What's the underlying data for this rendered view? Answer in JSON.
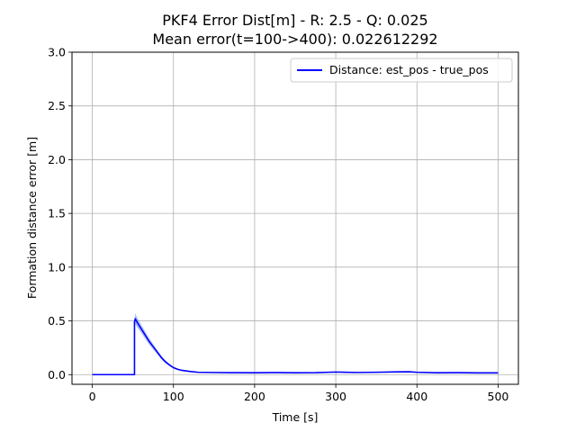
{
  "chart_data": {
    "type": "line",
    "title": "PKF4 Error Dist[m] - R: 2.5 - Q: 0.025",
    "subtitle": "Mean error(t=100->400): 0.022612292",
    "xlabel": "Time [s]",
    "ylabel": "Formation distance error [m]",
    "xlim": [
      -25,
      525
    ],
    "ylim": [
      -0.09,
      3.0
    ],
    "xticks": [
      0,
      100,
      200,
      300,
      400,
      500
    ],
    "xtick_labels": [
      "0",
      "100",
      "200",
      "300",
      "400",
      "500"
    ],
    "yticks": [
      0.0,
      0.5,
      1.0,
      1.5,
      2.0,
      2.5,
      3.0
    ],
    "ytick_labels": [
      "0.0",
      "0.5",
      "1.0",
      "1.5",
      "2.0",
      "2.5",
      "3.0"
    ],
    "grid": true,
    "legend_position": "top-right",
    "series": [
      {
        "name": "Distance: est_pos - true_pos",
        "color": "#0000ff",
        "band_color": "#6f8fe8",
        "x": [
          0,
          52,
          52,
          53,
          55,
          60,
          65,
          70,
          75,
          80,
          85,
          90,
          95,
          100,
          105,
          110,
          120,
          130,
          150,
          175,
          200,
          225,
          250,
          275,
          300,
          325,
          350,
          375,
          390,
          400,
          425,
          450,
          475,
          500
        ],
        "values": [
          0.0,
          0.0,
          0.49,
          0.52,
          0.49,
          0.43,
          0.37,
          0.31,
          0.26,
          0.21,
          0.16,
          0.12,
          0.09,
          0.065,
          0.05,
          0.04,
          0.03,
          0.022,
          0.02,
          0.018,
          0.017,
          0.019,
          0.017,
          0.018,
          0.024,
          0.02,
          0.022,
          0.026,
          0.027,
          0.022,
          0.017,
          0.018,
          0.016,
          0.016
        ],
        "band": [
          0.0,
          0.0,
          0.04,
          0.05,
          0.045,
          0.04,
          0.035,
          0.03,
          0.025,
          0.02,
          0.017,
          0.013,
          0.01,
          0.008,
          0.006,
          0.005,
          0.004,
          0.003,
          0.003,
          0.003,
          0.003,
          0.003,
          0.003,
          0.003,
          0.003,
          0.003,
          0.003,
          0.003,
          0.003,
          0.003,
          0.003,
          0.003,
          0.003,
          0.003
        ]
      }
    ]
  }
}
